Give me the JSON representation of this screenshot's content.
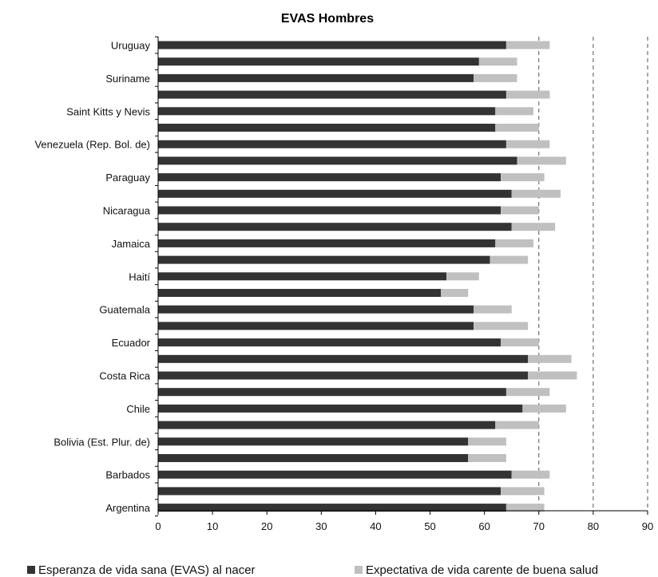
{
  "chart_data": {
    "type": "bar",
    "orientation": "horizontal",
    "stacked": true,
    "title": "EVAS Hombres",
    "xlim": [
      0,
      90
    ],
    "xticks": [
      0,
      10,
      20,
      30,
      40,
      50,
      60,
      70,
      80,
      90
    ],
    "grid": "vertical dashed at 70, 80, 90",
    "categories": [
      "Uruguay",
      "",
      "Suriname",
      "",
      "Saint Kitts y Nevis",
      "",
      "Venezuela (Rep. Bol. de)",
      "",
      "Paraguay",
      "",
      "Nicaragua",
      "",
      "Jamaica",
      "",
      "Haití",
      "",
      "Guatemala",
      "",
      "Ecuador",
      "",
      "Costa Rica",
      "",
      "Chile",
      "",
      "Bolivia (Est. Plur. de)",
      "",
      "Barbados",
      "",
      "Argentina"
    ],
    "series": [
      {
        "name": "Esperanza de vida sana (EVAS) al nacer",
        "color": "#333333",
        "values": [
          64,
          59,
          58,
          64,
          62,
          62,
          64,
          66,
          63,
          65,
          63,
          65,
          62,
          61,
          53,
          52,
          58,
          58,
          63,
          68,
          68,
          64,
          67,
          62,
          57,
          57,
          65,
          63,
          64
        ]
      },
      {
        "name": "Expectativa de vida carente de buena salud",
        "color": "#c0c0c0",
        "values": [
          8,
          7,
          8,
          8,
          7,
          8,
          8,
          9,
          8,
          9,
          7,
          8,
          7,
          7,
          6,
          5,
          7,
          10,
          7,
          8,
          9,
          8,
          8,
          8,
          7,
          7,
          7,
          8,
          7
        ]
      }
    ],
    "legend_position": "bottom"
  }
}
